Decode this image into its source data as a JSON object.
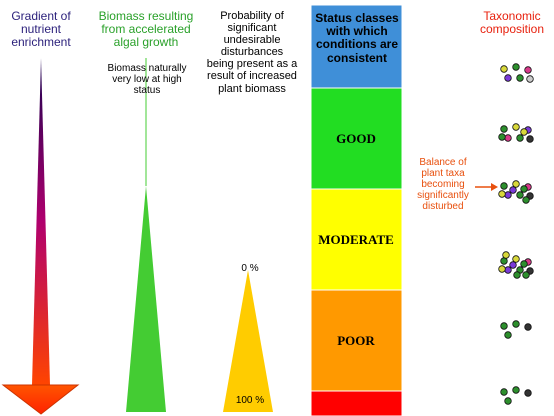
{
  "columns": {
    "gradient": "Gradient of nutrient enrichment",
    "biomass": "Biomass resulting from accelerated algal growth",
    "biomass_note": "Biomass naturally very low at high status",
    "probability": "Probability of significant undesirable disturbances being present as a result of increased plant biomass",
    "prob_top": "0 %",
    "prob_bottom": "100 %",
    "status": "Status classes with which conditions are consistent",
    "taxonomic": "Taxonomic composition",
    "balance_note": "Balance of plant taxa becoming significantly disturbed"
  },
  "status_classes": [
    {
      "label": "",
      "color": "#3f8fd8"
    },
    {
      "label": "GOOD",
      "color": "#22dd22"
    },
    {
      "label": "MODERATE",
      "color": "#ffff00"
    },
    {
      "label": "POOR",
      "color": "#ff9900"
    },
    {
      "label": "",
      "color": "#ff0000"
    }
  ],
  "colors": {
    "gradient_top": "#1a0050",
    "gradient_mid": "#b0006e",
    "gradient_bottom": "#ff4400",
    "biomass_triangle": "#44cc33",
    "probability_triangle": "#ffcc00",
    "arrow": "#e8500e"
  },
  "taxa_groups": [
    {
      "dots": [
        "#d8d83a",
        "#2d8f2d",
        "#d83a8a",
        "#7a3ad8",
        "#2d8f2d",
        "#cccccc"
      ]
    },
    {
      "dots": [
        "#2d8f2d",
        "#d8d83a",
        "#7a3ad8",
        "#d83a8a",
        "#2d8f2d",
        "#333333",
        "#2d8f2d",
        "#d8d83a"
      ]
    },
    {
      "dots": [
        "#2d8f2d",
        "#d8d83a",
        "#d83a8a",
        "#7a3ad8",
        "#2d8f2d",
        "#333333",
        "#d8d83a",
        "#2d8f2d",
        "#7a3ad8",
        "#2d8f2d"
      ]
    },
    {
      "dots": [
        "#2d8f2d",
        "#d8d83a",
        "#d83a8a",
        "#7a3ad8",
        "#2d8f2d",
        "#333333",
        "#d8d83a",
        "#2d8f2d",
        "#7a3ad8",
        "#2d8f2d",
        "#d8d83a",
        "#2d8f2d"
      ]
    },
    {
      "dots": [
        "#2d8f2d",
        "#2d8f2d",
        "#333333",
        "#2d8f2d"
      ]
    },
    {
      "dots": [
        "#2d8f2d",
        "#2d8f2d",
        "#333333",
        "#2d8f2d"
      ]
    }
  ]
}
